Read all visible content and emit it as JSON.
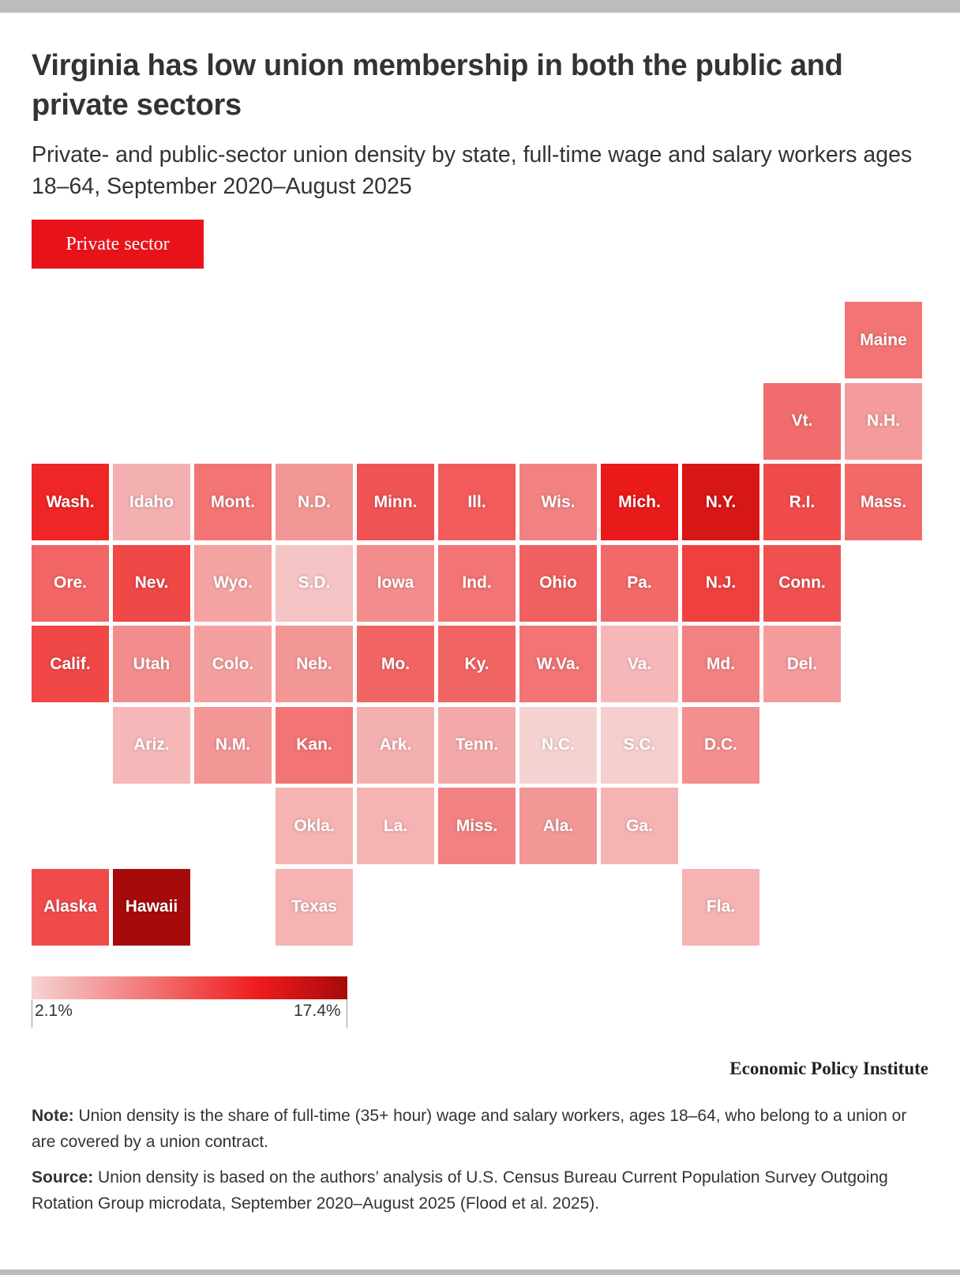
{
  "header": {
    "title": "Virginia has low union membership in both the public and private sectors",
    "subtitle": "Private- and public-sector union density by state, full-time wage and salary workers ages 18–64, September 2020–August 2025",
    "active_tab": "Private sector"
  },
  "colors": {
    "accent": "#e8131a",
    "scale_low": "#f6d3d3",
    "scale_mid": "#ee1c1c",
    "scale_high": "#a60a0a"
  },
  "chart_data": {
    "type": "heatmap",
    "subtype": "tile-grid-map",
    "title": "Virginia has low union membership in both the public and private sectors",
    "series_name": "Private sector",
    "units": "percent union density (estimated from color)",
    "scale": {
      "min": 2.1,
      "max": 17.4,
      "min_label": "2.1%",
      "max_label": "17.4%"
    },
    "tiles": [
      {
        "label": "Maine",
        "row": 0,
        "col": 10,
        "value": 7.8
      },
      {
        "label": "Vt.",
        "row": 1,
        "col": 9,
        "value": 8.3
      },
      {
        "label": "N.H.",
        "row": 1,
        "col": 10,
        "value": 5.5
      },
      {
        "label": "Wash.",
        "row": 2,
        "col": 0,
        "value": 12.5
      },
      {
        "label": "Idaho",
        "row": 2,
        "col": 1,
        "value": 4.2
      },
      {
        "label": "Mont.",
        "row": 2,
        "col": 2,
        "value": 7.8
      },
      {
        "label": "N.D.",
        "row": 2,
        "col": 3,
        "value": 5.8
      },
      {
        "label": "Minn.",
        "row": 2,
        "col": 4,
        "value": 9.8
      },
      {
        "label": "Ill.",
        "row": 2,
        "col": 5,
        "value": 9.3
      },
      {
        "label": "Wis.",
        "row": 2,
        "col": 6,
        "value": 7.0
      },
      {
        "label": "Mich.",
        "row": 2,
        "col": 7,
        "value": 13.5
      },
      {
        "label": "N.Y.",
        "row": 2,
        "col": 8,
        "value": 14.5
      },
      {
        "label": "R.I.",
        "row": 2,
        "col": 9,
        "value": 10.3
      },
      {
        "label": "Mass.",
        "row": 2,
        "col": 10,
        "value": 8.5
      },
      {
        "label": "Ore.",
        "row": 3,
        "col": 0,
        "value": 8.7
      },
      {
        "label": "Nev.",
        "row": 3,
        "col": 1,
        "value": 10.5
      },
      {
        "label": "Wyo.",
        "row": 3,
        "col": 2,
        "value": 5.0
      },
      {
        "label": "S.D.",
        "row": 3,
        "col": 3,
        "value": 3.0
      },
      {
        "label": "Iowa",
        "row": 3,
        "col": 4,
        "value": 6.3
      },
      {
        "label": "Ind.",
        "row": 3,
        "col": 5,
        "value": 7.8
      },
      {
        "label": "Ohio",
        "row": 3,
        "col": 6,
        "value": 9.0
      },
      {
        "label": "Pa.",
        "row": 3,
        "col": 7,
        "value": 8.5
      },
      {
        "label": "N.J.",
        "row": 3,
        "col": 8,
        "value": 11.0
      },
      {
        "label": "Conn.",
        "row": 3,
        "col": 9,
        "value": 10.0
      },
      {
        "label": "Calif.",
        "row": 4,
        "col": 0,
        "value": 10.5
      },
      {
        "label": "Utah",
        "row": 4,
        "col": 1,
        "value": 6.3
      },
      {
        "label": "Colo.",
        "row": 4,
        "col": 2,
        "value": 5.2
      },
      {
        "label": "Neb.",
        "row": 4,
        "col": 3,
        "value": 5.8
      },
      {
        "label": "Mo.",
        "row": 4,
        "col": 4,
        "value": 8.8
      },
      {
        "label": "Ky.",
        "row": 4,
        "col": 5,
        "value": 8.8
      },
      {
        "label": "W.Va.",
        "row": 4,
        "col": 6,
        "value": 7.8
      },
      {
        "label": "Va.",
        "row": 4,
        "col": 7,
        "value": 3.8
      },
      {
        "label": "Md.",
        "row": 4,
        "col": 8,
        "value": 7.0
      },
      {
        "label": "Del.",
        "row": 4,
        "col": 9,
        "value": 5.5
      },
      {
        "label": "Ariz.",
        "row": 5,
        "col": 1,
        "value": 3.8
      },
      {
        "label": "N.M.",
        "row": 5,
        "col": 2,
        "value": 5.8
      },
      {
        "label": "Kan.",
        "row": 5,
        "col": 3,
        "value": 7.8
      },
      {
        "label": "Ark.",
        "row": 5,
        "col": 4,
        "value": 4.2
      },
      {
        "label": "Tenn.",
        "row": 5,
        "col": 5,
        "value": 4.6
      },
      {
        "label": "N.C.",
        "row": 5,
        "col": 6,
        "value": 2.1
      },
      {
        "label": "S.C.",
        "row": 5,
        "col": 7,
        "value": 2.4
      },
      {
        "label": "D.C.",
        "row": 5,
        "col": 8,
        "value": 6.2
      },
      {
        "label": "Okla.",
        "row": 6,
        "col": 3,
        "value": 4.0
      },
      {
        "label": "La.",
        "row": 6,
        "col": 4,
        "value": 4.0
      },
      {
        "label": "Miss.",
        "row": 6,
        "col": 5,
        "value": 7.0
      },
      {
        "label": "Ala.",
        "row": 6,
        "col": 6,
        "value": 5.8
      },
      {
        "label": "Ga.",
        "row": 6,
        "col": 7,
        "value": 4.0
      },
      {
        "label": "Alaska",
        "row": 7,
        "col": 0,
        "value": 10.3
      },
      {
        "label": "Hawaii",
        "row": 7,
        "col": 1,
        "value": 17.4
      },
      {
        "label": "Texas",
        "row": 7,
        "col": 3,
        "value": 4.0
      },
      {
        "label": "Fla.",
        "row": 7,
        "col": 8,
        "value": 4.0
      }
    ]
  },
  "footer": {
    "credit": "Economic Policy Institute",
    "note_label": "Note:",
    "note_text": " Union density is the share of full-time (35+ hour) wage and salary workers, ages 18–64, who belong to a union or are covered by a union contract.",
    "source_label": "Source:",
    "source_text": " Union density is based on the authors’ analysis of U.S. Census Bureau Current Population Survey Outgoing Rotation Group microdata, September 2020–August 2025 (Flood et al. 2025)."
  }
}
